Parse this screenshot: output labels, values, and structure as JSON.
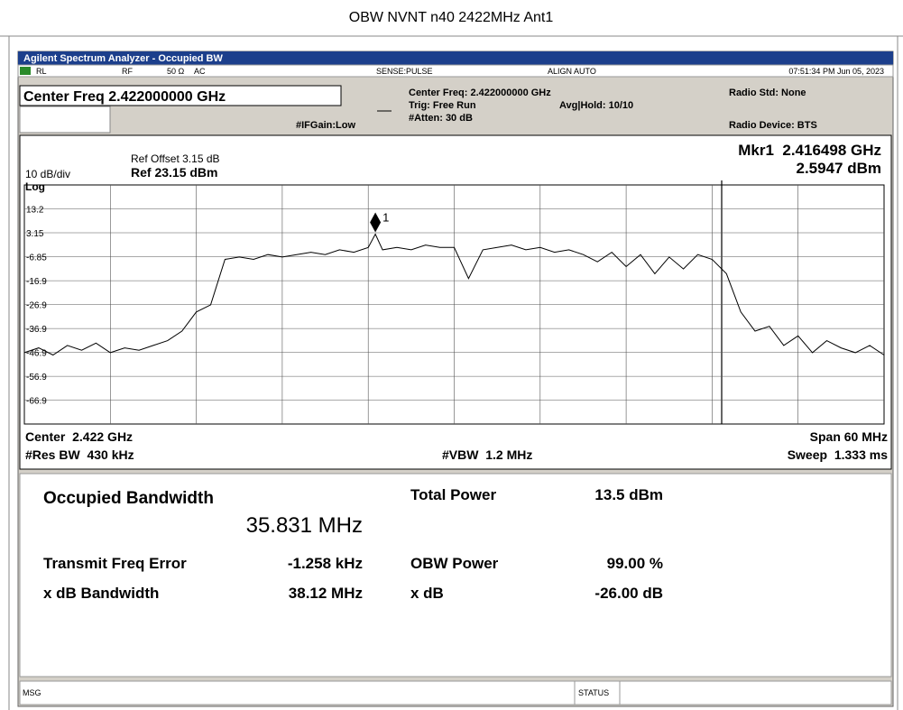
{
  "window_title": "OBW NVNT n40 2422MHz Ant1",
  "app_title": "Agilent Spectrum Analyzer - Occupied BW",
  "status_bar": {
    "rl": "RL",
    "rf": "RF",
    "impedance": "50 Ω",
    "coupling": "AC",
    "sense": "SENSE:PULSE",
    "align": "ALIGN AUTO",
    "time": "07:51:34 PM Jun 05, 2023"
  },
  "center_freq": "Center Freq 2.422000000 GHz",
  "settings": {
    "center": "Center Freq: 2.422000000 GHz",
    "trig": "Trig: Free Run",
    "atten": "#Atten: 30 dB",
    "avg": "Avg|Hold: 10/10",
    "ifgain": "#IFGain:Low",
    "radio_std": "Radio Std: None",
    "radio_device": "Radio Device: BTS"
  },
  "plot": {
    "ref_offset": "Ref Offset 3.15 dB",
    "ref_level": "Ref 23.15 dBm",
    "scale": "10 dB/div",
    "scale_type": "Log",
    "marker_freq": "Mkr1  2.416498 GHz",
    "marker_level": "2.5947 dBm",
    "marker_label": "1",
    "center": "Center  2.422 GHz",
    "res_bw": "#Res BW  430 kHz",
    "vbw": "#VBW  1.2 MHz",
    "span": "Span 60 MHz",
    "sweep": "Sweep  1.333 ms"
  },
  "chart_data": {
    "type": "line",
    "xlim": [
      2392,
      2452
    ],
    "ylim": [
      -76.85,
      23.15
    ],
    "yticks": [
      13.2,
      3.15,
      -6.85,
      -16.9,
      -26.9,
      -36.9,
      -46.9,
      -56.9,
      -66.9
    ],
    "marker": {
      "x": 2416.498,
      "y": 2.5947
    },
    "x": [
      2392,
      2393,
      2394,
      2395,
      2396,
      2397,
      2398,
      2399,
      2400,
      2401,
      2402,
      2403,
      2404,
      2405,
      2406,
      2407,
      2408,
      2409,
      2410,
      2411,
      2412,
      2413,
      2414,
      2415,
      2416,
      2416.498,
      2417,
      2418,
      2419,
      2420,
      2421,
      2422,
      2423,
      2424,
      2425,
      2426,
      2427,
      2428,
      2429,
      2430,
      2431,
      2432,
      2433,
      2434,
      2435,
      2436,
      2437,
      2438,
      2439,
      2440,
      2441,
      2442,
      2443,
      2444,
      2445,
      2446,
      2447,
      2448,
      2449,
      2450,
      2451,
      2452
    ],
    "values": [
      -47,
      -45,
      -48,
      -44,
      -46,
      -43,
      -47,
      -45,
      -46,
      -44,
      -42,
      -38,
      -30,
      -27,
      -8,
      -7,
      -8,
      -6,
      -7,
      -6,
      -5,
      -6,
      -4,
      -5,
      -3,
      2.5947,
      -4,
      -3,
      -4,
      -2,
      -3,
      -3,
      -16,
      -4,
      -3,
      -2,
      -4,
      -3,
      -5,
      -4,
      -6,
      -9,
      -5,
      -11,
      -6,
      -14,
      -7,
      -12,
      -6,
      -8,
      -14,
      -30,
      -38,
      -36,
      -44,
      -40,
      -47,
      -42,
      -45,
      -47,
      -44,
      -48
    ],
    "color": "#000000"
  },
  "results": {
    "obw_label": "Occupied Bandwidth",
    "obw_value": "35.831 MHz",
    "total_power_label": "Total Power",
    "total_power_value": "13.5 dBm",
    "freq_error_label": "Transmit Freq Error",
    "freq_error_value": "-1.258 kHz",
    "obw_power_label": "OBW Power",
    "obw_power_value": "99.00 %",
    "xdb_bw_label": "x dB Bandwidth",
    "xdb_bw_value": "38.12 MHz",
    "xdb_label": "x dB",
    "xdb_value": "-26.00 dB"
  },
  "footer": {
    "msg": "MSG",
    "status": "STATUS"
  }
}
